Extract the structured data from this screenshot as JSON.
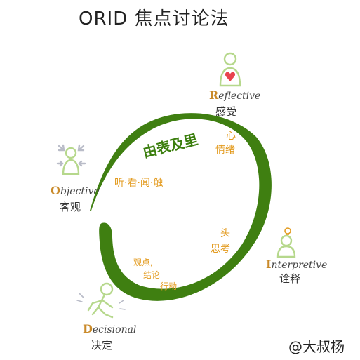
{
  "title": "ORID 焦点讨论法",
  "center_label": "由表及里",
  "stages": {
    "objective": {
      "en_first": "O",
      "en_rest": "bjective",
      "cn": "客观",
      "note": "听·看·闻·触"
    },
    "reflective": {
      "en_first": "R",
      "en_rest": "eflective",
      "cn": "感受",
      "note_line1": "心",
      "note_line2": "情绪"
    },
    "interpretive": {
      "en_first": "I",
      "en_rest": "nterpretive",
      "cn": "诠释",
      "note_line1": "头",
      "note_line2": "思考"
    },
    "decisional": {
      "en_first": "D",
      "en_rest": "ecisional",
      "cn": "决定",
      "note_line1": "观点,",
      "note_line2": "结论",
      "note_line3": "行动"
    }
  },
  "signature": "@大叔杨",
  "colors": {
    "arrow": "#3f7f11",
    "figure": "#b6d88c",
    "heart": "#e8434e",
    "note": "#e39b1f",
    "accent": "#c98a2a"
  },
  "icons": {
    "objective": "person-with-inward-arrows-icon",
    "reflective": "person-with-heart-icon",
    "interpretive": "person-with-lightbulb-icon",
    "decisional": "person-walking-icon"
  }
}
